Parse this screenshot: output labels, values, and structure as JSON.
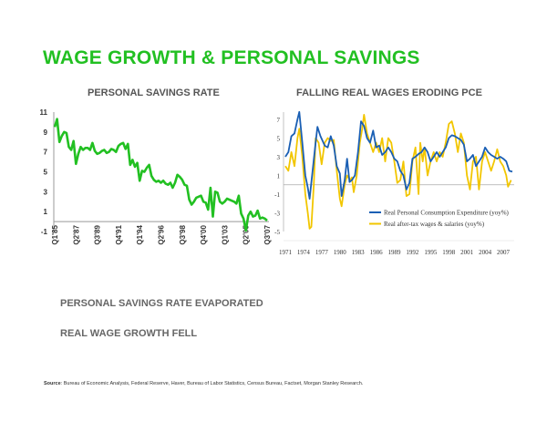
{
  "title": "WAGE GROWTH & PERSONAL SAVINGS",
  "bullets": [
    "PERSONAL SAVINGS RATE EVAPORATED",
    "REAL WAGE GROWTH FELL"
  ],
  "source": {
    "label": "Source",
    "text": ": Bureau of Economic Analysis, Federal Reserve, Haver, Bureau of Labor Statistics, Census Bureau, Factset, Morgan Stanley Research."
  },
  "colors": {
    "title": "#22c022",
    "savings": "#22c022",
    "pce": "#1a5fb4",
    "wages": "#f2c600"
  },
  "chart_data": [
    {
      "type": "line",
      "title": "PERSONAL SAVINGS RATE",
      "ylim": [
        -1,
        11
      ],
      "yticks": [
        -1,
        1,
        3,
        5,
        7,
        9,
        11
      ],
      "xtick_labels": [
        "Q1'85",
        "Q2'87",
        "Q3'89",
        "Q4'91",
        "Q1'94",
        "Q2'96",
        "Q3'98",
        "Q4'00",
        "Q1'03",
        "Q2'05",
        "Q3'07"
      ],
      "x_start": "Q1'85",
      "frequency": "quarterly",
      "grid": false,
      "series": [
        {
          "values": [
            9.5,
            10.3,
            8,
            8.6,
            9,
            8.9,
            7.5,
            7.2,
            8.1,
            5.8,
            6.8,
            7.5,
            7.2,
            7.4,
            7.4,
            7.2,
            7.9,
            7.1,
            6.8,
            6.9,
            7.1,
            7.2,
            6.9,
            7,
            7.3,
            7.2,
            7,
            7.6,
            7.8,
            7.9,
            7.3,
            7.8,
            5.7,
            6.2,
            5.5,
            5.9,
            4.1,
            5.1,
            5,
            5.4,
            5.7,
            4.6,
            4.2,
            4,
            4.1,
            3.9,
            4.1,
            3.8,
            3.7,
            3.9,
            3.4,
            3.9,
            4.7,
            4.5,
            4.2,
            3.7,
            3.6,
            2.2,
            1.7,
            2,
            2.4,
            2.5,
            2.6,
            2,
            1.9,
            1.2,
            3.4,
            0.5,
            3,
            2.9,
            2,
            1.8,
            2,
            2.3,
            2.2,
            2.1,
            2,
            1.8,
            2.6,
            0.8,
            0.3,
            -0.9,
            0.6,
            1,
            0.5,
            0.6,
            1.1,
            0.3,
            0.4,
            0.3,
            0.1
          ]
        }
      ]
    },
    {
      "type": "line",
      "title": "FALLING REAL WAGES ERODING PCE",
      "ylim": [
        -5,
        7
      ],
      "yticks": [
        -5,
        -3,
        -1,
        1,
        3,
        5,
        7
      ],
      "xlim": [
        1971,
        2008.5
      ],
      "xticks": [
        1971,
        1974,
        1977,
        1980,
        1983,
        1986,
        1989,
        1992,
        1995,
        1998,
        2001,
        2004,
        2007
      ],
      "grid": false,
      "legend": "bottom-right",
      "series": [
        {
          "name": "Real Personal Consumption Expenditure (yoy%)",
          "x": [
            1971,
            1971.5,
            1972,
            1972.5,
            1973,
            1973.3,
            1973.8,
            1974.3,
            1974.7,
            1975,
            1975.5,
            1976,
            1976.3,
            1976.8,
            1977.5,
            1978,
            1978.5,
            1979,
            1979.5,
            1980,
            1980.3,
            1980.8,
            1981.2,
            1981.6,
            1982,
            1982.5,
            1983,
            1983.5,
            1984,
            1984.5,
            1985,
            1985.5,
            1986,
            1986.5,
            1987,
            1987.5,
            1988,
            1988.5,
            1989,
            1989.5,
            1990,
            1990.5,
            1991,
            1991.5,
            1992,
            1992.5,
            1993,
            1993.5,
            1994,
            1994.5,
            1995,
            1995.5,
            1996,
            1996.5,
            1997,
            1997.5,
            1998,
            1998.5,
            1999,
            1999.5,
            2000,
            2000.5,
            2001,
            2001.5,
            2002,
            2002.5,
            2003,
            2003.5,
            2004,
            2004.5,
            2005,
            2005.5,
            2006,
            2006.5,
            2007,
            2007.5,
            2008,
            2008.5
          ],
          "y": [
            3,
            3.5,
            5.2,
            5.5,
            7,
            7.8,
            4.5,
            1,
            -0.3,
            -1.5,
            1.5,
            4.5,
            6.2,
            5.2,
            4.2,
            4,
            5.2,
            4.2,
            2,
            1.2,
            -1.2,
            0.5,
            2.8,
            0.3,
            0.5,
            1,
            3.5,
            6.8,
            6.3,
            5,
            4.5,
            5.8,
            4,
            4.2,
            3.2,
            3.5,
            4,
            3.5,
            2.8,
            2.5,
            1.5,
            1,
            -0.5,
            0.2,
            2.8,
            3,
            3.3,
            3.5,
            4,
            3.5,
            2.5,
            3,
            3.5,
            3,
            3.5,
            4,
            5,
            5.3,
            5.2,
            5,
            4.8,
            4.3,
            2.5,
            2.8,
            3.2,
            2,
            2.5,
            3,
            4,
            3.5,
            3.2,
            3,
            2.8,
            3,
            2.8,
            2.5,
            1.5,
            1.4
          ]
        },
        {
          "name": "Real after-tax wages & salaries (yoy%)",
          "x": [
            1971,
            1971.5,
            1972,
            1972.5,
            1973,
            1973.3,
            1973.8,
            1974.3,
            1974.7,
            1975,
            1975.3,
            1975.7,
            1976,
            1976.5,
            1977,
            1977.5,
            1978,
            1978.5,
            1979,
            1979.5,
            1980,
            1980.3,
            1980.8,
            1981.2,
            1981.7,
            1982,
            1982.3,
            1982.8,
            1983.3,
            1983.7,
            1984,
            1984.5,
            1985,
            1985.5,
            1986,
            1986.5,
            1987,
            1987.5,
            1988,
            1988.5,
            1989,
            1989.5,
            1990,
            1990.5,
            1991,
            1991.5,
            1992,
            1992.5,
            1993,
            1993.3,
            1993.7,
            1994,
            1994.5,
            1995,
            1995.5,
            1996,
            1996.5,
            1997,
            1997.5,
            1998,
            1998.5,
            1999,
            1999.5,
            2000,
            2000.5,
            2001,
            2001.5,
            2002,
            2002.5,
            2003,
            2003.5,
            2004,
            2004.5,
            2005,
            2005.5,
            2006,
            2006.5,
            2007,
            2007.5,
            2007.8,
            2008.3
          ],
          "y": [
            2,
            1.5,
            3.5,
            2,
            5,
            6,
            3,
            -1,
            -3,
            -4.7,
            -4.5,
            0,
            5,
            4.5,
            2.2,
            4.5,
            5,
            4.7,
            4.8,
            1.5,
            -1.5,
            -2.3,
            0,
            1,
            0.5,
            0.8,
            -0.8,
            1,
            4.5,
            6,
            7.5,
            5.5,
            4.5,
            3.5,
            4.5,
            3.5,
            5,
            2.5,
            5,
            4.5,
            2.5,
            0.2,
            0.5,
            2.5,
            -1.2,
            -1,
            2.5,
            4,
            -1,
            4.5,
            2.5,
            4,
            1,
            2.5,
            3.5,
            2.5,
            3.5,
            3,
            4.5,
            6.5,
            6.8,
            5.5,
            3.5,
            5.5,
            4.5,
            1,
            -0.5,
            2.5,
            3,
            -0.5,
            2.5,
            3.5,
            2.5,
            1.5,
            2.5,
            3.8,
            2.5,
            2,
            1,
            -0.2,
            0.5
          ]
        }
      ]
    }
  ]
}
